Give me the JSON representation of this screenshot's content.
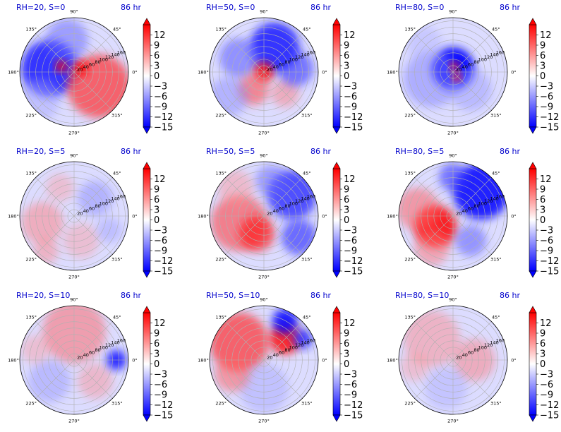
{
  "figure": {
    "time_label": "86 hr",
    "colormap": "bwr",
    "colorbar": {
      "vmin": -15,
      "vmax": 15,
      "extend": "both",
      "ticks": [
        "12",
        "9",
        "6",
        "3",
        "0",
        "−3",
        "−6",
        "−9",
        "−12",
        "−15"
      ]
    },
    "angular_ticks": [
      "90°",
      "45°",
      "0°",
      "315°",
      "270°",
      "225°",
      "180°",
      "135°"
    ],
    "radial_ticks": [
      "20",
      "40",
      "60",
      "80",
      "100",
      "120",
      "140",
      "160"
    ]
  },
  "chart_data": [
    {
      "type": "heatmap",
      "projection": "polar",
      "title": "RH=20, S=0",
      "time": "86 hr",
      "rlim": [
        0,
        170
      ],
      "thetalim_deg": [
        0,
        360
      ],
      "grid": true,
      "pattern": "dipole",
      "dominant_sign": "mixed"
    },
    {
      "type": "heatmap",
      "projection": "polar",
      "title": "RH=50, S=0",
      "time": "86 hr",
      "rlim": [
        0,
        170
      ],
      "thetalim_deg": [
        0,
        360
      ],
      "grid": true,
      "pattern": "blue-ring",
      "dominant_sign": "negative"
    },
    {
      "type": "heatmap",
      "projection": "polar",
      "title": "RH=80, S=0",
      "time": "86 hr",
      "rlim": [
        0,
        170
      ],
      "thetalim_deg": [
        0,
        360
      ],
      "grid": true,
      "pattern": "blue-core",
      "dominant_sign": "negative"
    },
    {
      "type": "heatmap",
      "projection": "polar",
      "title": "RH=20, S=5",
      "time": "86 hr",
      "rlim": [
        0,
        170
      ],
      "thetalim_deg": [
        0,
        360
      ],
      "grid": true,
      "pattern": "weak-mixed",
      "dominant_sign": "weak-positive"
    },
    {
      "type": "heatmap",
      "projection": "polar",
      "title": "RH=50, S=5",
      "time": "86 hr",
      "rlim": [
        0,
        170
      ],
      "thetalim_deg": [
        0,
        360
      ],
      "grid": true,
      "pattern": "positive-west-negative-east",
      "dominant_sign": "mixed"
    },
    {
      "type": "heatmap",
      "projection": "polar",
      "title": "RH=80, S=5",
      "time": "86 hr",
      "rlim": [
        0,
        170
      ],
      "thetalim_deg": [
        0,
        360
      ],
      "grid": true,
      "pattern": "positive-southwest-negative-northeast",
      "dominant_sign": "mixed"
    },
    {
      "type": "heatmap",
      "projection": "polar",
      "title": "RH=20, S=10",
      "time": "86 hr",
      "rlim": [
        0,
        170
      ],
      "thetalim_deg": [
        0,
        360
      ],
      "grid": true,
      "pattern": "positive-north-negative-south",
      "dominant_sign": "weak"
    },
    {
      "type": "heatmap",
      "projection": "polar",
      "title": "RH=50, S=10",
      "time": "86 hr",
      "rlim": [
        0,
        170
      ],
      "thetalim_deg": [
        0,
        360
      ],
      "grid": true,
      "pattern": "positive-northwest-negative-northeast",
      "dominant_sign": "positive"
    },
    {
      "type": "heatmap",
      "projection": "polar",
      "title": "RH=80, S=10",
      "time": "86 hr",
      "rlim": [
        0,
        170
      ],
      "thetalim_deg": [
        0,
        360
      ],
      "grid": true,
      "pattern": "weak-positive",
      "dominant_sign": "weak-positive"
    }
  ]
}
